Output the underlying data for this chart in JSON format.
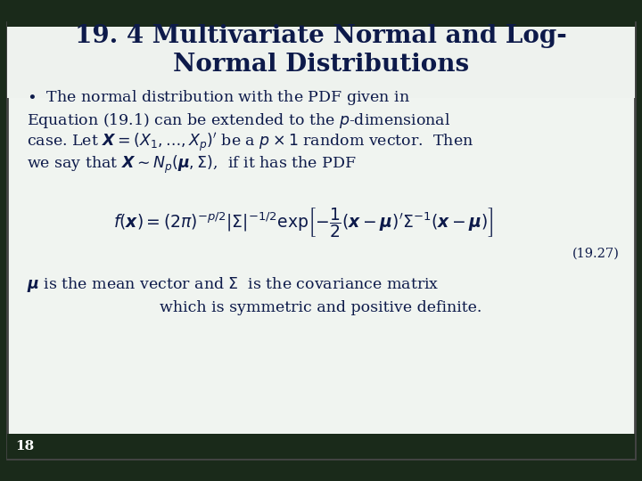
{
  "title_line1": "19. 4 Multivariate Normal and Log-",
  "title_line2": "Normal Distributions",
  "title_color": "#0d1a4a",
  "title_fontsize": 20,
  "bg_color": "#e8ede4",
  "inner_bg": "#f0f4f0",
  "border_color": "#333333",
  "text_color": "#0d1a4a",
  "body_fontsize": 12.5,
  "equation_number": "(19.27)",
  "slide_number": "18",
  "top_bar_color": "#1a2a1a",
  "bot_bar_color": "#1a2a1a"
}
